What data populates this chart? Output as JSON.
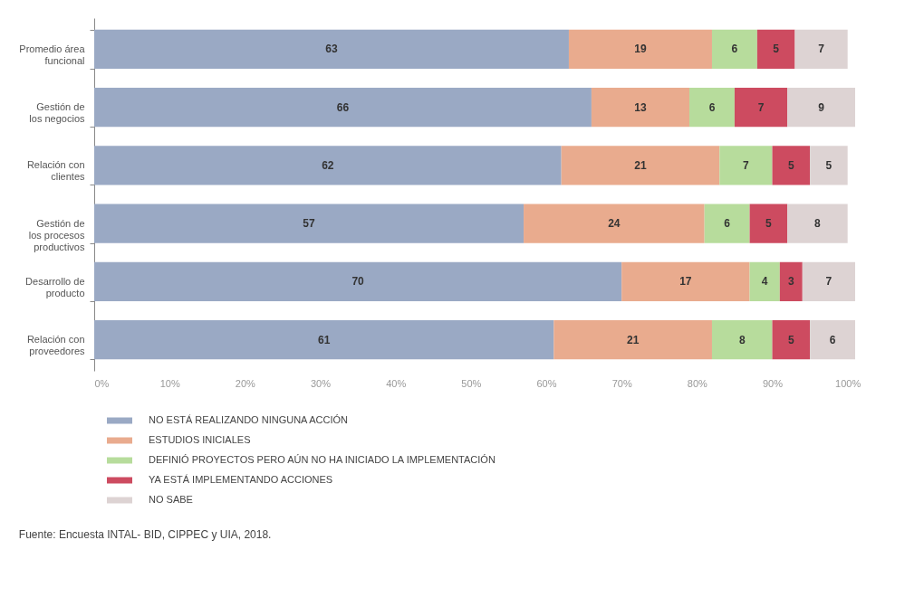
{
  "chart_data": {
    "type": "bar",
    "orientation": "horizontal",
    "stacked": true,
    "data_labels": true,
    "grid": false,
    "legend": "bottom",
    "categories": [
      "Promedio área funcional",
      "Gestión de los negocios",
      "Relación con clientes",
      "Gestión de los procesos productivos",
      "Desarrollo de producto",
      "Relación con proveedores"
    ],
    "series": [
      {
        "name": "NO ESTÁ REALIZANDO NINGUNA ACCIÓN",
        "color": "#9aa9c4",
        "values": [
          63,
          66,
          62,
          57,
          70,
          61
        ]
      },
      {
        "name": "ESTUDIOS INICIALES",
        "color": "#e9ab8e",
        "values": [
          19,
          13,
          21,
          24,
          17,
          21
        ]
      },
      {
        "name": "DEFINIÓ PROYECTOS PERO AÚN NO HA INICIADO LA IMPLEMENTACIÓN",
        "color": "#b7dc9c",
        "values": [
          6,
          6,
          7,
          6,
          4,
          8
        ]
      },
      {
        "name": "YA ESTÁ IMPLEMENTANDO ACCIONES",
        "color": "#cd4b60",
        "values": [
          5,
          7,
          5,
          5,
          3,
          5
        ]
      },
      {
        "name": "NO SABE",
        "color": "#ddd3d3",
        "values": [
          7,
          9,
          5,
          8,
          7,
          6
        ]
      }
    ],
    "xlim": [
      0,
      101
    ],
    "xticks": [
      {
        "value": 0,
        "label": "0%"
      },
      {
        "value": 10,
        "label": "10%"
      },
      {
        "value": 20,
        "label": "20%"
      },
      {
        "value": 30,
        "label": "30%"
      },
      {
        "value": 40,
        "label": "40%"
      },
      {
        "value": 50,
        "label": "50%"
      },
      {
        "value": 60,
        "label": "60%"
      },
      {
        "value": 70,
        "label": "70%"
      },
      {
        "value": 80,
        "label": "80%"
      },
      {
        "value": 90,
        "label": "90%"
      },
      {
        "value": 100,
        "label": "100%"
      }
    ],
    "annotations": [
      "Fuente: Encuesta INTAL- BID, CIPPEC y UIA, 2018."
    ]
  }
}
